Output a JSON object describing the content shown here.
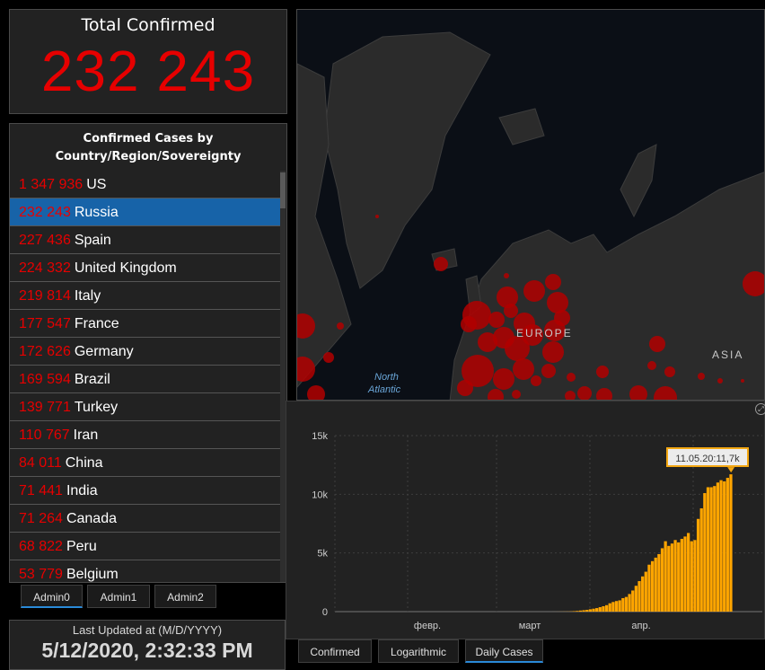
{
  "total": {
    "title": "Total Confirmed",
    "value": "232 243"
  },
  "list": {
    "header_line1": "Confirmed Cases by",
    "header_line2": "Country/Region/Sovereignty",
    "rows": [
      {
        "count": "1 347 936",
        "name": "US"
      },
      {
        "count": "232 243",
        "name": "Russia",
        "selected": true
      },
      {
        "count": "227 436",
        "name": "Spain"
      },
      {
        "count": "224 332",
        "name": "United Kingdom"
      },
      {
        "count": "219 814",
        "name": "Italy"
      },
      {
        "count": "177 547",
        "name": "France"
      },
      {
        "count": "172 626",
        "name": "Germany"
      },
      {
        "count": "169 594",
        "name": "Brazil"
      },
      {
        "count": "139 771",
        "name": "Turkey"
      },
      {
        "count": "110 767",
        "name": "Iran"
      },
      {
        "count": "84 011",
        "name": "China"
      },
      {
        "count": "71 441",
        "name": "India"
      },
      {
        "count": "71 264",
        "name": "Canada"
      },
      {
        "count": "68 822",
        "name": "Peru"
      },
      {
        "count": "53 779",
        "name": "Belgium"
      }
    ]
  },
  "admin_tabs": [
    "Admin0",
    "Admin1",
    "Admin2"
  ],
  "updated": {
    "label": "Last Updated at (M/D/YYYY)",
    "value": "5/12/2020, 2:32:33 PM"
  },
  "map": {
    "labels": {
      "europe": "EUROPE",
      "asia": "ASIA",
      "north": "North",
      "atlantic": "Atlantic"
    }
  },
  "chart_tabs": [
    "Confirmed",
    "Logarithmic",
    "Daily Cases"
  ],
  "colors": {
    "accent_red": "#e60000",
    "selected_row": "#1763a8",
    "bar": "#ffa500",
    "bubble": "#b10000"
  },
  "chart_data": {
    "type": "bar",
    "ylim": [
      0,
      15000
    ],
    "y_ticks": [
      {
        "v": 0,
        "label": "0"
      },
      {
        "v": 5000,
        "label": "5k"
      },
      {
        "v": 10000,
        "label": "10k"
      },
      {
        "v": 15000,
        "label": "15k"
      }
    ],
    "x_ticks": [
      "февр.",
      "март",
      "апр."
    ],
    "tooltip": "11.05.20:11,7k",
    "values": [
      0,
      0,
      0,
      0,
      0,
      0,
      0,
      0,
      0,
      0,
      0,
      0,
      0,
      0,
      0,
      0,
      0,
      0,
      0,
      0,
      0,
      0,
      0,
      0,
      0,
      0,
      0,
      0,
      0,
      0,
      0,
      0,
      0,
      0,
      0,
      0,
      0,
      0,
      0,
      0,
      0,
      0,
      0,
      0,
      0,
      0,
      0,
      0,
      0,
      0,
      0,
      0,
      0,
      0,
      0,
      0,
      0,
      0,
      0,
      0,
      0,
      0,
      0,
      0,
      0,
      2,
      4,
      7,
      10,
      15,
      20,
      40,
      60,
      90,
      120,
      150,
      200,
      250,
      300,
      380,
      460,
      550,
      710,
      820,
      900,
      960,
      1150,
      1250,
      1500,
      1800,
      2200,
      2600,
      3000,
      3400,
      4000,
      4300,
      4600,
      4900,
      5400,
      6000,
      5600,
      5800,
      6100,
      5900,
      6200,
      6400,
      6700,
      6000,
      6100,
      7900,
      8800,
      10100,
      10600,
      10600,
      10700,
      11000,
      11200,
      11100,
      11400,
      11700
    ]
  }
}
